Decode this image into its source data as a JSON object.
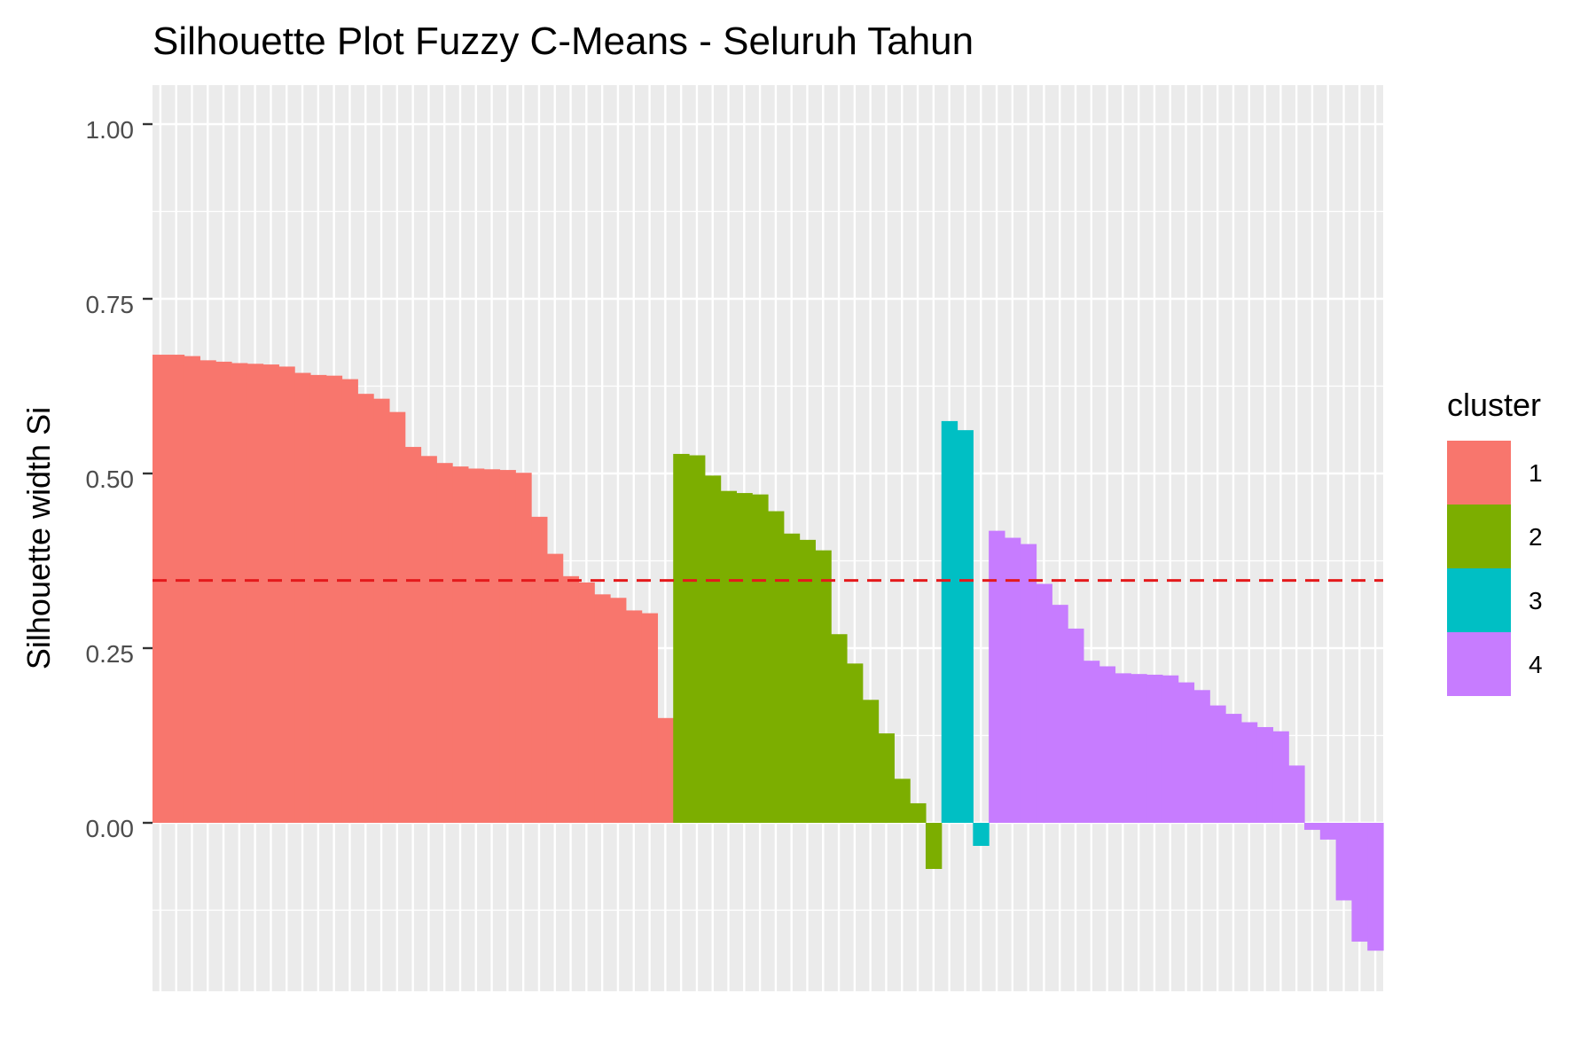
{
  "chart_data": {
    "type": "bar",
    "title": "Silhouette Plot Fuzzy C-Means - Seluruh Tahun",
    "xlabel": "",
    "ylabel": "Silhouette width Si",
    "ylim": [
      -0.24,
      1.04
    ],
    "yticks": [
      "1.00",
      "0.75",
      "0.50",
      "0.25",
      "0.00"
    ],
    "ytick_values": [
      1.0,
      0.75,
      0.5,
      0.25,
      0.0
    ],
    "reference_line": {
      "value": 0.347,
      "color": "#E41A1C",
      "style": "dashed"
    },
    "grid": true,
    "legend": {
      "title": "cluster",
      "placement": "right",
      "entries": [
        {
          "label": "1",
          "color": "#F8766D"
        },
        {
          "label": "2",
          "color": "#7CAE00"
        },
        {
          "label": "3",
          "color": "#00BFC4"
        },
        {
          "label": "4",
          "color": "#C77CFF"
        }
      ]
    },
    "series": [
      {
        "cluster": "1",
        "color": "#F8766D",
        "values": [
          0.67,
          0.67,
          0.668,
          0.662,
          0.66,
          0.658,
          0.657,
          0.656,
          0.653,
          0.644,
          0.641,
          0.64,
          0.635,
          0.614,
          0.607,
          0.588,
          0.538,
          0.525,
          0.515,
          0.51,
          0.507,
          0.506,
          0.505,
          0.501,
          0.438,
          0.385,
          0.353,
          0.344,
          0.327,
          0.322,
          0.304,
          0.3,
          0.15
        ]
      },
      {
        "cluster": "2",
        "color": "#7CAE00",
        "values": [
          0.528,
          0.526,
          0.497,
          0.475,
          0.472,
          0.47,
          0.446,
          0.414,
          0.405,
          0.39,
          0.27,
          0.228,
          0.176,
          0.128,
          0.063,
          0.028,
          -0.066
        ]
      },
      {
        "cluster": "3",
        "color": "#00BFC4",
        "values": [
          0.575,
          0.562,
          -0.033
        ]
      },
      {
        "cluster": "4",
        "color": "#C77CFF",
        "values": [
          0.418,
          0.408,
          0.399,
          0.342,
          0.312,
          0.278,
          0.232,
          0.224,
          0.214,
          0.213,
          0.212,
          0.211,
          0.201,
          0.19,
          0.168,
          0.156,
          0.144,
          0.137,
          0.131,
          0.082,
          -0.01,
          -0.024,
          -0.111,
          -0.17,
          -0.183
        ]
      }
    ]
  }
}
